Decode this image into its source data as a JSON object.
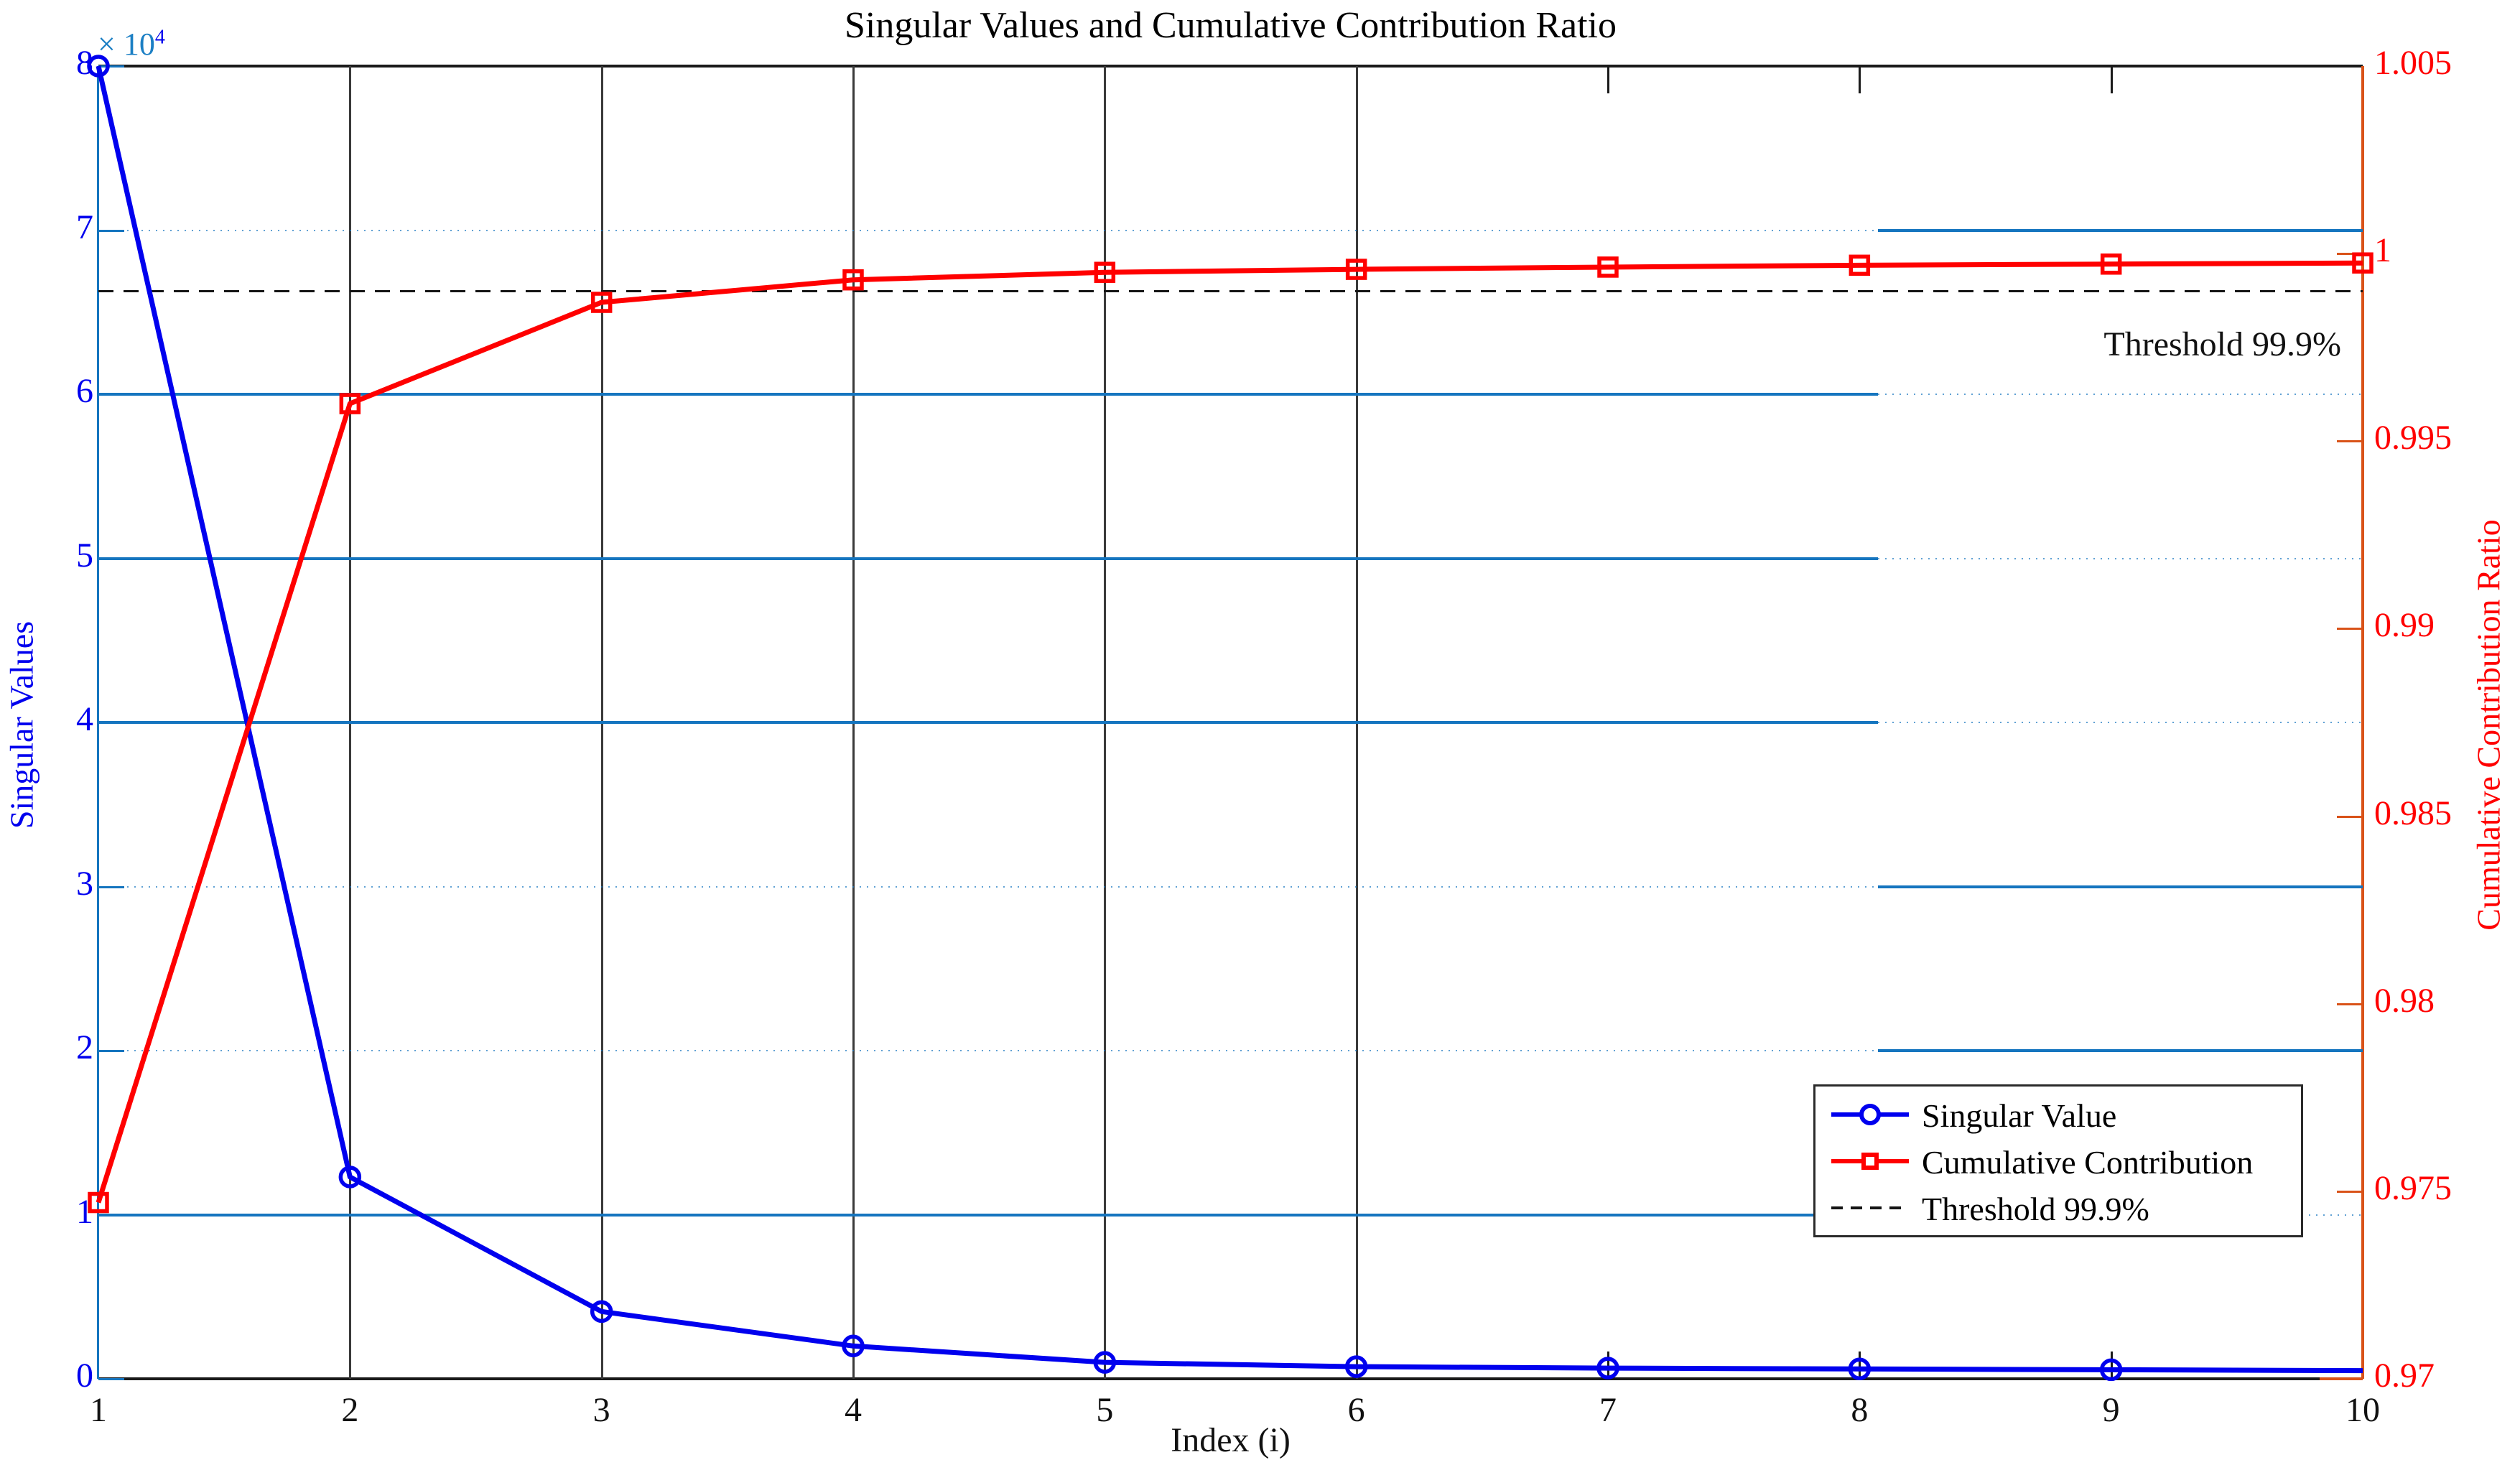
{
  "title": "Singular Values and Cumulative Contribution Ratio",
  "axes": {
    "x": {
      "label": "Index (i)",
      "ticks": [
        "1",
        "2",
        "3",
        "4",
        "5",
        "6",
        "7",
        "8",
        "9",
        "10"
      ],
      "range": [
        1,
        10
      ]
    },
    "y_left": {
      "label": "Singular Values",
      "color": "#0000EE",
      "ticks": [
        "0",
        "1",
        "2",
        "3",
        "4",
        "5",
        "6",
        "7",
        "8"
      ],
      "multiplier_base": "× 10",
      "multiplier_exp": "4",
      "range": [
        0,
        80000
      ]
    },
    "y_right": {
      "label": "Cumulative Contribution Ratio",
      "color": "#FF0000",
      "ticks": [
        "1.005",
        "1",
        "0.995",
        "0.99",
        "0.985",
        "0.98",
        "0.975",
        "0.97"
      ],
      "range": [
        0.97,
        1.005
      ]
    }
  },
  "annotation": {
    "text": "Threshold 99.9%"
  },
  "legend": {
    "items": [
      {
        "label": "Singular Value"
      },
      {
        "label": "Cumulative Contribution"
      },
      {
        "label": "Threshold 99.9%"
      }
    ]
  },
  "chart_data": {
    "type": "line",
    "title": "Singular Values and Cumulative Contribution Ratio",
    "xlabel": "Index (i)",
    "ylabel_left": "Singular Values",
    "ylabel_right": "Cumulative Contribution Ratio",
    "x": [
      1,
      2,
      3,
      4,
      5,
      6,
      7,
      8,
      9,
      10
    ],
    "xlim": [
      1,
      10
    ],
    "ylim_left": [
      0,
      80000
    ],
    "ylim_right": [
      0.97,
      1.005
    ],
    "left_axis_multiplier": "1e4",
    "series": [
      {
        "name": "Singular Value",
        "axis": "left",
        "color": "#0000EE",
        "marker": "circle",
        "values": [
          80000,
          12300,
          4100,
          2000,
          1000,
          740,
          650,
          600,
          550,
          500
        ]
      },
      {
        "name": "Cumulative Contribution",
        "axis": "right",
        "color": "#FF0000",
        "marker": "square",
        "values": [
          0.9747,
          0.996,
          0.9987,
          0.9993,
          0.9995,
          0.99958,
          0.99964,
          0.99969,
          0.99972,
          0.99975
        ]
      },
      {
        "name": "Threshold 99.9%",
        "axis": "right",
        "style": "dashed",
        "color": "#141414",
        "threshold_value": 0.999
      }
    ],
    "grid": true,
    "legend_position": "lower right"
  }
}
